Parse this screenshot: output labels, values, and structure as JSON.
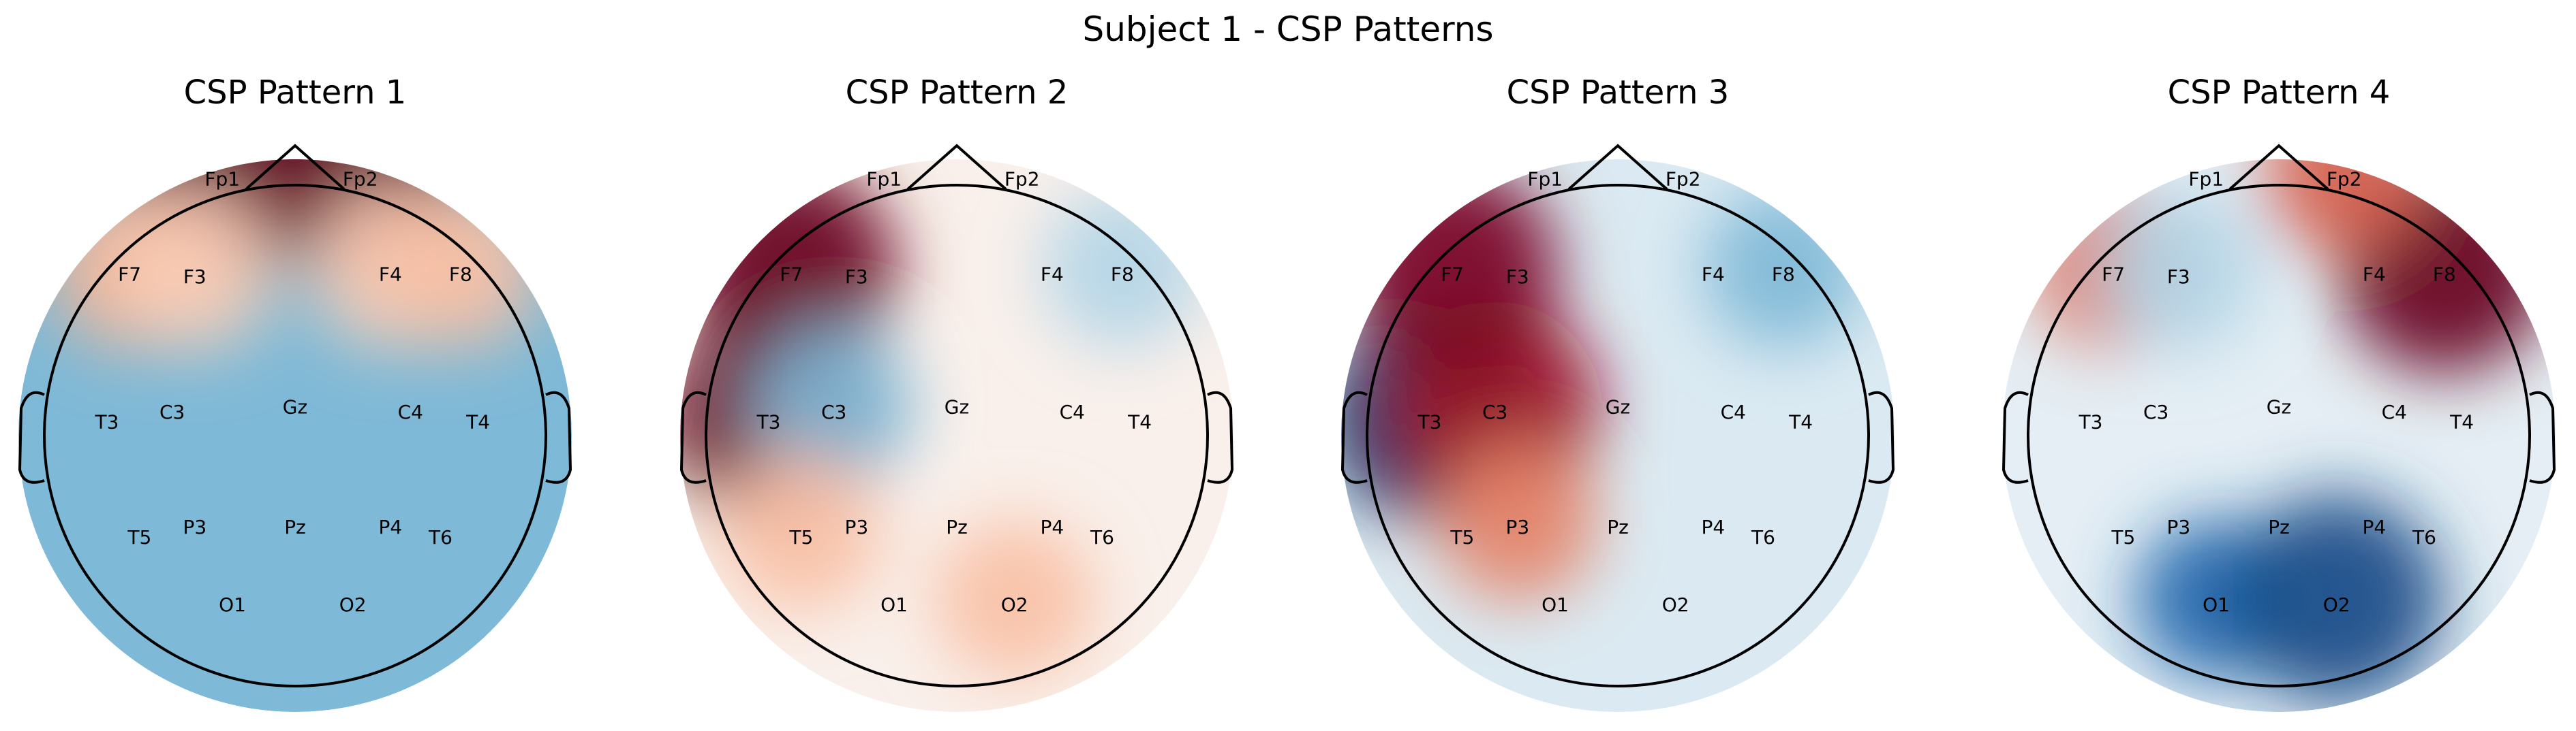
{
  "figure": {
    "title": "Subject 1 - CSP Patterns"
  },
  "colormap": {
    "name": "RdBu_r",
    "stops": [
      "#053061",
      "#2166ac",
      "#4393c3",
      "#92c5de",
      "#d1e5f0",
      "#f7f7f7",
      "#fddbc7",
      "#f4a582",
      "#d6604d",
      "#b2182b",
      "#67001f"
    ]
  },
  "electrode_labels": [
    "Fp1",
    "Fp2",
    "F7",
    "F3",
    "F4",
    "F8",
    "T3",
    "C3",
    "Gz",
    "C4",
    "T4",
    "T5",
    "P3",
    "Pz",
    "P4",
    "T6",
    "O1",
    "O2"
  ],
  "patterns": [
    {
      "title": "CSP Pattern 1",
      "background_level": -0.45,
      "blobs": [
        {
          "electrode": "Fp1",
          "level": 1.0
        },
        {
          "electrode": "Fp2",
          "level": 1.0
        },
        {
          "electrode": "F7",
          "level": 0.35
        },
        {
          "electrode": "F3",
          "level": 0.25
        },
        {
          "electrode": "F4",
          "level": 0.25
        },
        {
          "electrode": "F8",
          "level": 0.3
        }
      ]
    },
    {
      "title": "CSP Pattern 2",
      "background_level": 0.05,
      "blobs": [
        {
          "electrode": "F7",
          "level": 1.0
        },
        {
          "electrode": "T3",
          "level": 1.0
        },
        {
          "electrode": "C3",
          "level": -0.45
        },
        {
          "electrode": "F8",
          "level": -0.3
        },
        {
          "electrode": "O2",
          "level": 0.3
        },
        {
          "electrode": "T5",
          "level": 0.3
        }
      ]
    },
    {
      "title": "CSP Pattern 3",
      "background_level": -0.15,
      "blobs": [
        {
          "electrode": "T3",
          "level": -1.0
        },
        {
          "electrode": "C3",
          "level": 0.85
        },
        {
          "electrode": "F7",
          "level": 0.95
        },
        {
          "electrode": "P3",
          "level": 0.5
        },
        {
          "electrode": "F8",
          "level": -0.45
        }
      ]
    },
    {
      "title": "CSP Pattern 4",
      "background_level": -0.1,
      "blobs": [
        {
          "electrode": "F8",
          "level": 1.0
        },
        {
          "electrode": "Fp2",
          "level": 0.6
        },
        {
          "electrode": "F7",
          "level": 0.55
        },
        {
          "electrode": "O1",
          "level": -0.8
        },
        {
          "electrode": "O2",
          "level": -0.9
        },
        {
          "electrode": "F3",
          "level": -0.3
        }
      ]
    }
  ]
}
